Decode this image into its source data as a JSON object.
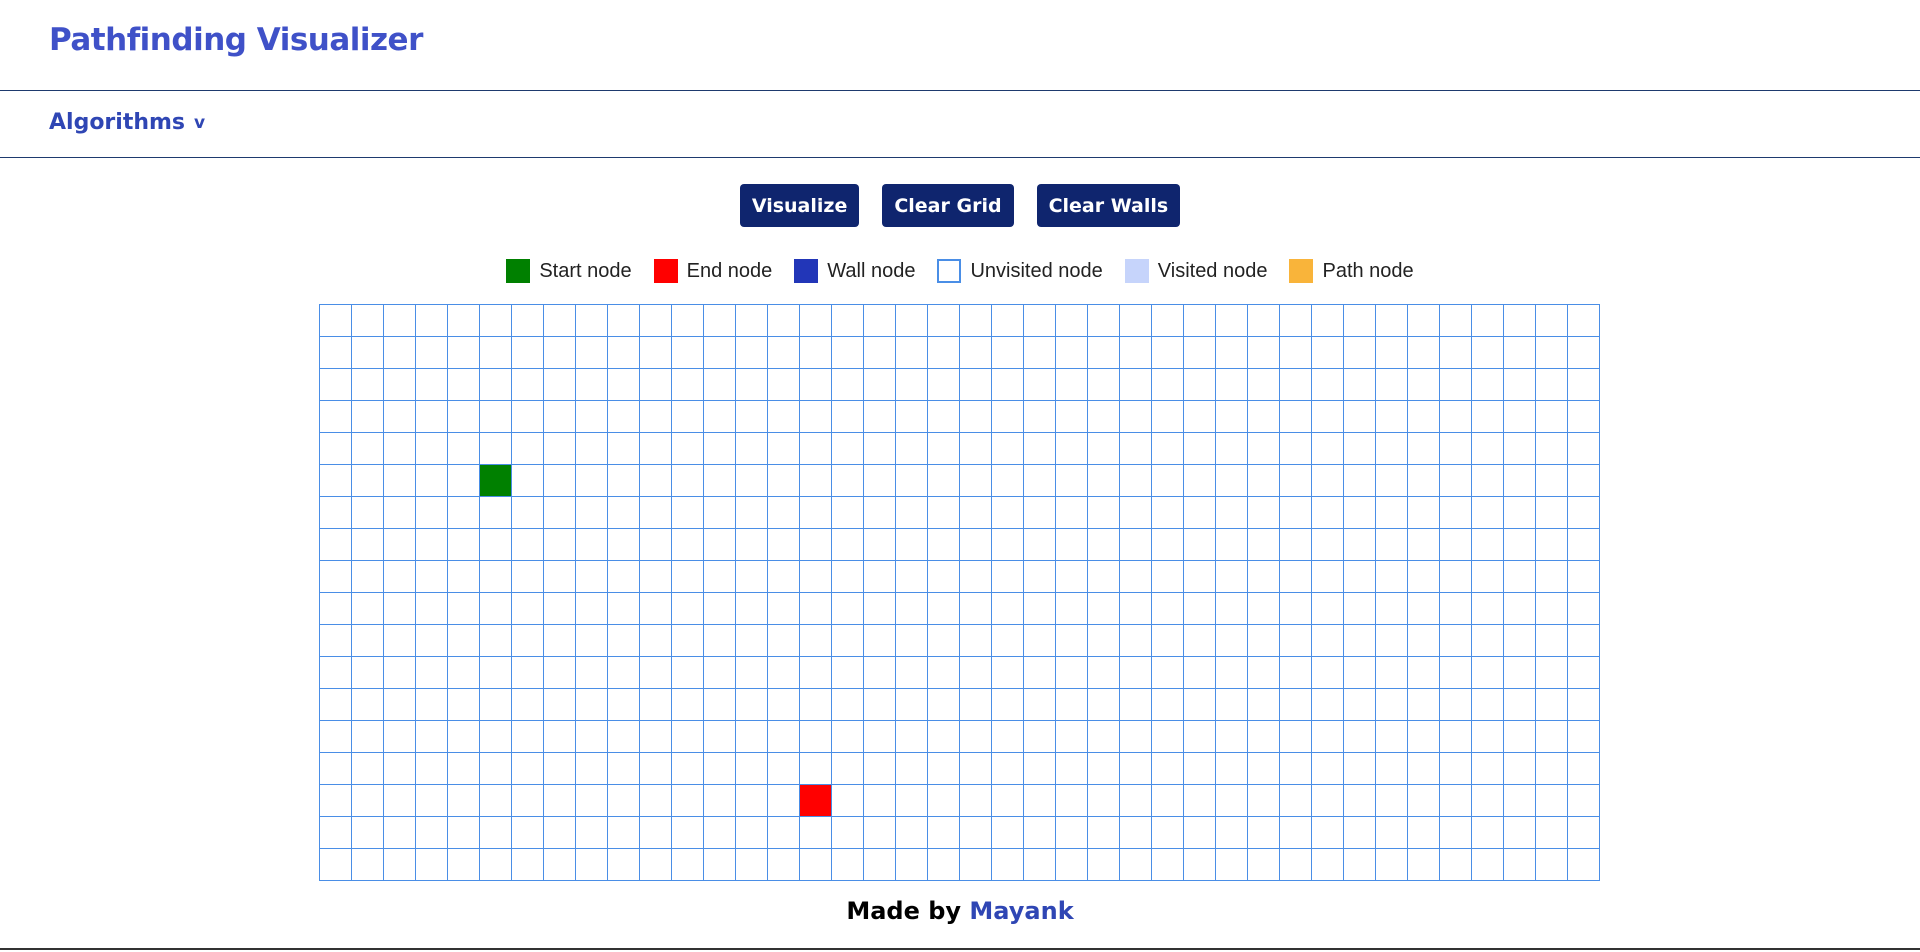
{
  "app": {
    "title": "Pathfinding Visualizer"
  },
  "nav": {
    "algorithms_label": "Algorithms",
    "chevron": "v"
  },
  "toolbar": {
    "visualize_label": "Visualize",
    "clear_grid_label": "Clear Grid",
    "clear_walls_label": "Clear Walls"
  },
  "legend": [
    {
      "label": "Start node",
      "color": "#008000",
      "icon": "start-node-swatch"
    },
    {
      "label": "End node",
      "color": "#ff0000",
      "icon": "end-node-swatch"
    },
    {
      "label": "Wall node",
      "color": "#2236b8",
      "icon": "wall-node-swatch"
    },
    {
      "label": "Unvisited node",
      "color": "#ffffff",
      "icon": "unvisited-node-swatch"
    },
    {
      "label": "Visited node",
      "color": "#c6d4fb",
      "icon": "visited-node-swatch"
    },
    {
      "label": "Path node",
      "color": "#f9b43a",
      "icon": "path-node-swatch"
    }
  ],
  "grid": {
    "rows": 18,
    "cols": 40,
    "start": {
      "row": 5,
      "col": 5
    },
    "end": {
      "row": 15,
      "col": 15
    }
  },
  "footer": {
    "made_by": "Made by",
    "author": "Mayank"
  }
}
